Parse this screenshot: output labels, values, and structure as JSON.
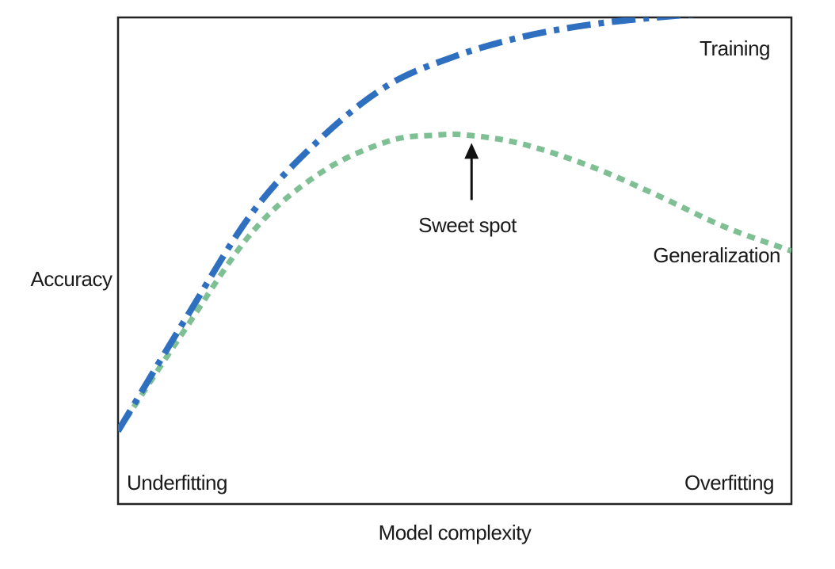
{
  "chart_data": {
    "type": "line",
    "title": "",
    "xlabel": "Model complexity",
    "ylabel": "Accuracy",
    "xlim": [
      0,
      100
    ],
    "ylim": [
      0,
      100
    ],
    "grid": false,
    "series": [
      {
        "name": "Training",
        "style": "dash-dot",
        "color": "#2f6fbf",
        "x": [
          0,
          10,
          20,
          30,
          40,
          50,
          60,
          70,
          80,
          90,
          100
        ],
        "y": [
          15,
          38,
          60,
          75,
          86,
          92,
          96,
          98.5,
          100,
          101,
          101.5
        ]
      },
      {
        "name": "Generalization",
        "style": "dotted",
        "color": "#7fbf94",
        "x": [
          0,
          10,
          20,
          30,
          40,
          47,
          52,
          60,
          70,
          80,
          90,
          100
        ],
        "y": [
          15,
          36,
          56,
          68,
          74.5,
          75.8,
          75.8,
          74,
          69.5,
          63.5,
          57,
          52
        ]
      }
    ],
    "annotations": [
      {
        "text": "Sweet spot",
        "x": 52.5,
        "y": 75.5,
        "type": "arrow"
      },
      {
        "text": "Underfitting",
        "position": "bottom-left"
      },
      {
        "text": "Overfitting",
        "position": "bottom-right"
      }
    ]
  }
}
